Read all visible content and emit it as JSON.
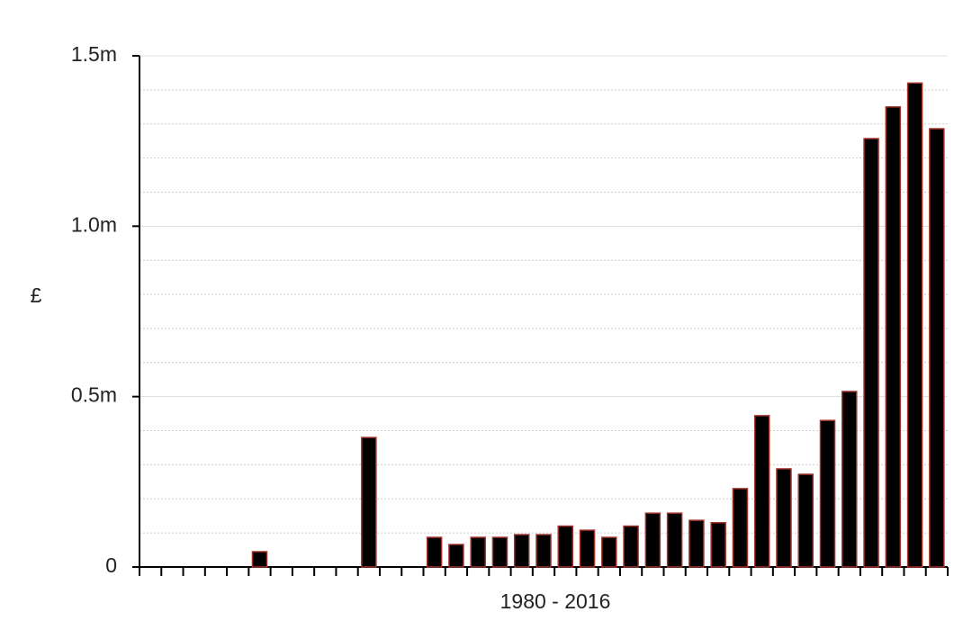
{
  "chart_data": {
    "type": "bar",
    "x_label": "1980 - 2016",
    "y_label": "£",
    "categories": [
      null,
      null,
      null,
      null,
      null,
      null,
      null,
      null,
      null,
      null,
      null,
      null,
      null,
      null,
      null,
      null,
      null,
      null,
      null,
      null,
      null,
      null,
      null,
      null,
      null,
      null,
      null,
      null,
      null,
      null,
      null,
      null,
      null,
      null,
      null,
      null,
      null
    ],
    "values": [
      0,
      0,
      0,
      0,
      0,
      0.045,
      0,
      0,
      0,
      0,
      0.38,
      0,
      0,
      0.087,
      0.066,
      0.087,
      0.087,
      0.095,
      0.095,
      0.12,
      0.108,
      0.087,
      0.12,
      0.158,
      0.158,
      0.137,
      0.13,
      0.23,
      0.444,
      0.288,
      0.272,
      0.43,
      0.515,
      1.257,
      1.35,
      1.42,
      1.286
    ],
    "color": "#000000",
    "edge_color": "#a0322a",
    "ylim": [
      0,
      1.5
    ],
    "yticks": [
      0,
      {
        "value": 0.5,
        "label": "0.5m"
      },
      {
        "value": 1.0,
        "label": "1.0m"
      },
      {
        "value": 1.5,
        "label": "1.5m"
      }
    ],
    "minor_yticks": [
      0.1,
      0.2,
      0.3,
      0.4,
      0.6,
      0.7,
      0.8,
      0.9,
      1.1,
      1.2,
      1.3,
      1.4
    ],
    "grid": true
  }
}
